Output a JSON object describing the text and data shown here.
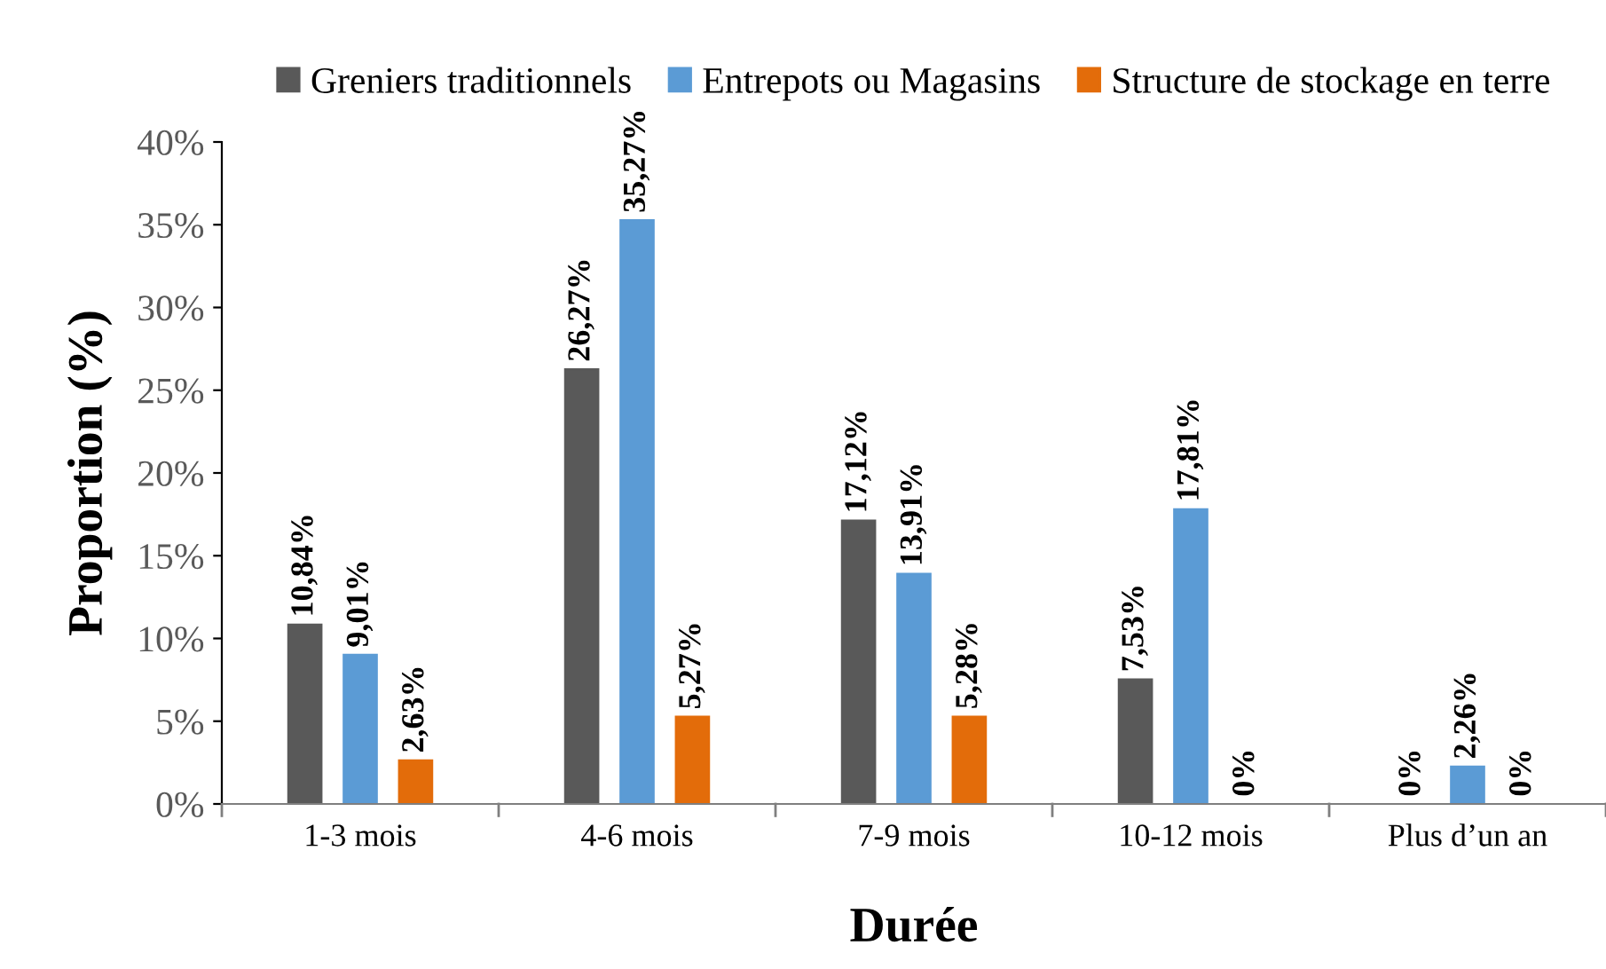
{
  "chart_data": {
    "type": "bar",
    "xlabel": "Durée",
    "ylabel": "Proportion (%)",
    "categories": [
      "1-3 mois",
      "4-6 mois",
      "7-9 mois",
      "10-12 mois",
      "Plus d’un an"
    ],
    "series": [
      {
        "name": "Greniers traditionnels",
        "color": "#595959",
        "values": [
          10.84,
          26.27,
          17.12,
          7.53,
          0
        ],
        "value_labels": [
          "10,84%",
          "26,27%",
          "17,12%",
          "7,53%",
          "0%"
        ]
      },
      {
        "name": "Entrepots ou Magasins",
        "color": "#5b9bd5",
        "values": [
          9.01,
          35.27,
          13.91,
          17.81,
          2.26
        ],
        "value_labels": [
          "9,01%",
          "35,27%",
          "13,91%",
          "17,81%",
          "2,26%"
        ]
      },
      {
        "name": "Structure de stockage en terre",
        "color": "#e36c0a",
        "values": [
          2.63,
          5.27,
          5.28,
          0,
          0
        ],
        "value_labels": [
          "2,63%",
          "5,27%",
          "5,28%",
          "0%",
          "0%"
        ]
      }
    ],
    "ylim": [
      0,
      40
    ],
    "yticks": [
      {
        "value": 0,
        "label": "0%"
      },
      {
        "value": 5,
        "label": "5%"
      },
      {
        "value": 10,
        "label": "10%"
      },
      {
        "value": 15,
        "label": "15%"
      },
      {
        "value": 20,
        "label": "20%"
      },
      {
        "value": 25,
        "label": "25%"
      },
      {
        "value": 30,
        "label": "30%"
      },
      {
        "value": 35,
        "label": "35%"
      },
      {
        "value": 40,
        "label": "40%"
      }
    ],
    "grid": false,
    "legend": "top"
  }
}
